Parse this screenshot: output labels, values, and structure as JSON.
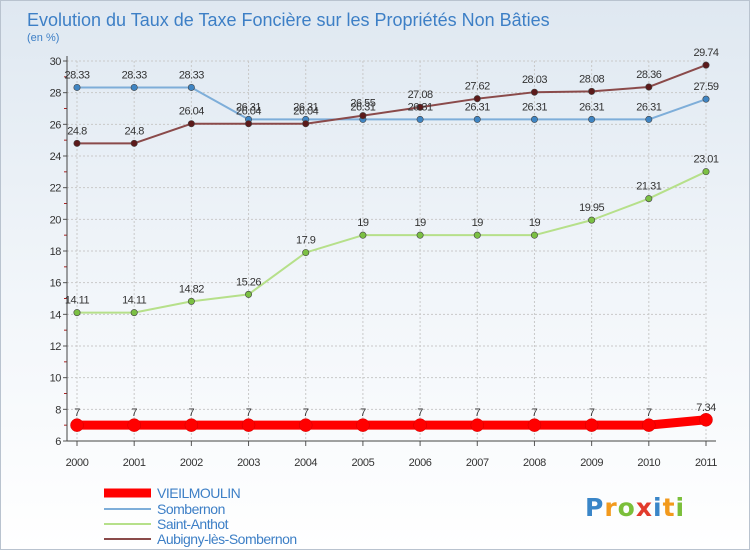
{
  "chart_data": {
    "type": "line",
    "title": "Evolution du Taux de Taxe Foncière sur les Propriétés Non Bâties",
    "ylabel": "(en %)",
    "xlabel": "",
    "ylim": [
      6,
      30
    ],
    "yticks": [
      6,
      8,
      10,
      12,
      14,
      16,
      18,
      20,
      22,
      24,
      26,
      28,
      30
    ],
    "grid": true,
    "x": [
      "2000",
      "2001",
      "2002",
      "2003",
      "2004",
      "2005",
      "2006",
      "2007",
      "2008",
      "2009",
      "2010",
      "2011"
    ],
    "series": [
      {
        "name": "VIEILMOULIN",
        "color": "#ff0000",
        "marker_color": "#ff0000",
        "values": [
          7,
          7,
          7,
          7,
          7,
          7,
          7,
          7,
          7,
          7,
          7,
          7.34
        ],
        "labels": [
          "7",
          "7",
          "7",
          "7",
          "7",
          "7",
          "7",
          "7",
          "7",
          "7",
          "7",
          "7.34"
        ]
      },
      {
        "name": "Sombernon",
        "color": "#7eaed9",
        "marker_color": "#3f85c3",
        "values": [
          28.33,
          28.33,
          28.33,
          26.31,
          26.31,
          26.31,
          26.31,
          26.31,
          26.31,
          26.31,
          26.31,
          27.59
        ],
        "labels": [
          "28.33",
          "28.33",
          "28.33",
          "26.31",
          "26.31",
          "26.31",
          "26.31",
          "26.31",
          "26.31",
          "26.31",
          "26.31",
          "27.59"
        ]
      },
      {
        "name": "Saint-Anthot",
        "color": "#b6e08a",
        "marker_color": "#7bc043",
        "values": [
          14.11,
          14.11,
          14.82,
          15.26,
          17.9,
          19,
          19,
          19,
          19,
          19.95,
          21.31,
          23.01
        ],
        "labels": [
          "14.11",
          "14.11",
          "14.82",
          "15.26",
          "17.9",
          "19",
          "19",
          "19",
          "19",
          "19.95",
          "21.31",
          "23.01"
        ]
      },
      {
        "name": "Aubigny-lès-Sombernon",
        "color": "#8a4a4a",
        "marker_color": "#5c1a1a",
        "values": [
          24.8,
          24.8,
          26.04,
          26.04,
          26.04,
          26.55,
          27.08,
          27.62,
          28.03,
          28.08,
          28.36,
          29.74
        ],
        "labels": [
          "24.8",
          "24.8",
          "26.04",
          "26.04",
          "26.04",
          "26.55",
          "27.08",
          "27.62",
          "28.03",
          "28.08",
          "28.36",
          "29.74"
        ]
      }
    ],
    "legend_position": "bottom-left"
  },
  "logo": {
    "text": "Proxiti",
    "letters": [
      "P",
      "r",
      "o",
      "x",
      "i",
      "t",
      "i"
    ]
  }
}
